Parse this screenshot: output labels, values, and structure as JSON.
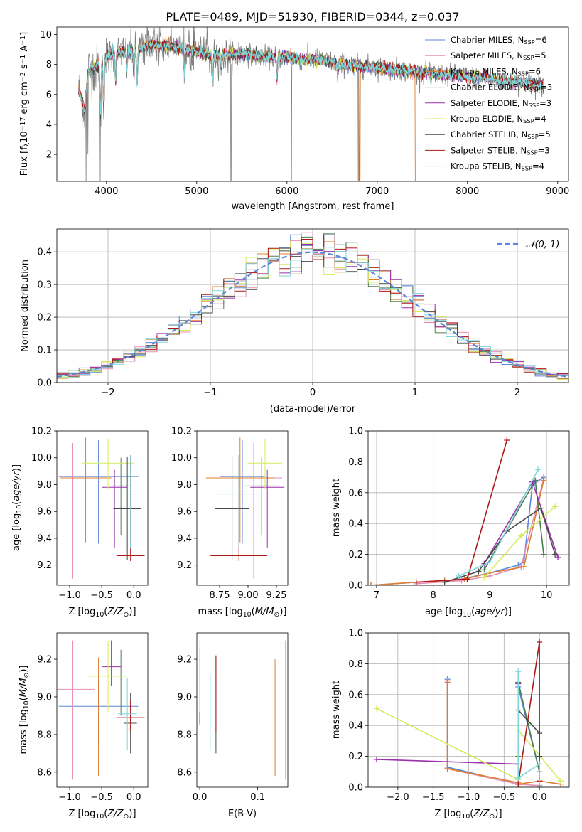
{
  "figure": {
    "title": "PLATE=0489, MJD=51930, FIBERID=0344, z=0.037"
  },
  "series": [
    {
      "name": "Chabrier MILES, N$_{SSP}$=6",
      "label_main": "Chabrier MILES, N",
      "label_sub": "SSP",
      "label_tail": "=6",
      "color": "#5b87d8"
    },
    {
      "name": "Salpeter MILES, N$_{SSP}$=5",
      "label_main": "Salpeter MILES, N",
      "label_sub": "SSP",
      "label_tail": "=5",
      "color": "#e88fb4"
    },
    {
      "name": "Kroupa MILES, N$_{SSP}$=6",
      "label_main": "Kroupa MILES, N",
      "label_sub": "SSP",
      "label_tail": "=6",
      "color": "#dc7d2f"
    },
    {
      "name": "Chabrier ELODIE, N$_{SSP}$=3",
      "label_main": "Chabrier ELODIE, N",
      "label_sub": "SSP",
      "label_tail": "=3",
      "color": "#4d7f4d"
    },
    {
      "name": "Salpeter ELODIE, N$_{SSP}$=3",
      "label_main": "Salpeter ELODIE, N",
      "label_sub": "SSP",
      "label_tail": "=3",
      "color": "#9b2fae"
    },
    {
      "name": "Kroupa ELODIE, N$_{SSP}$=4",
      "label_main": "Kroupa ELODIE, N",
      "label_sub": "SSP",
      "label_tail": "=4",
      "color": "#d4ec5a"
    },
    {
      "name": "Chabrier STELIB, N$_{SSP}$=5",
      "label_main": "Chabrier STELIB, N",
      "label_sub": "SSP",
      "label_tail": "=5",
      "color": "#4a4a4a"
    },
    {
      "name": "Salpeter STELIB, N$_{SSP}$=3",
      "label_main": "Salpeter STELIB, N",
      "label_sub": "SSP",
      "label_tail": "=3",
      "color": "#b01818"
    },
    {
      "name": "Kroupa STELIB, N$_{SSP}$=4",
      "label_main": "Kroupa STELIB, N",
      "label_sub": "SSP",
      "label_tail": "=4",
      "color": "#7fd6da"
    }
  ],
  "data_color": "#808080",
  "chart_data": [
    {
      "id": "spectrum",
      "type": "line",
      "xlabel": "wavelength [Angstrom, rest frame]",
      "ylabel": "Flux [f$_\\lambda$10$^{-17}$ erg cm$^{-2}$ s$^{-1}$ A$^{-1}$]",
      "ylabel_parts": [
        "Flux [f",
        "λ",
        "10",
        "−17",
        " erg cm",
        "−2",
        " s",
        "−1",
        " A",
        "−1",
        "]"
      ],
      "xlim": [
        3450,
        9120
      ],
      "ylim": [
        0.2,
        10.5
      ],
      "xticks": [
        4000,
        5000,
        6000,
        7000,
        8000,
        9000
      ],
      "yticks": [
        2,
        4,
        6,
        8,
        10
      ],
      "legend_position": "upper right",
      "anchors": [
        [
          3700,
          6.2
        ],
        [
          3760,
          4.9
        ],
        [
          3800,
          7.6
        ],
        [
          3900,
          7.9
        ],
        [
          4000,
          8.5
        ],
        [
          4100,
          8.8
        ],
        [
          4200,
          8.9
        ],
        [
          4300,
          8.9
        ],
        [
          4400,
          9.2
        ],
        [
          4500,
          9.3
        ],
        [
          4700,
          9.2
        ],
        [
          4900,
          9.0
        ],
        [
          5100,
          8.7
        ],
        [
          5300,
          8.6
        ],
        [
          5500,
          8.7
        ],
        [
          5800,
          8.5
        ],
        [
          6000,
          8.5
        ],
        [
          6200,
          8.3
        ],
        [
          6400,
          8.3
        ],
        [
          6600,
          8.0
        ],
        [
          6800,
          7.9
        ],
        [
          7000,
          7.8
        ],
        [
          7300,
          7.6
        ],
        [
          7500,
          7.5
        ],
        [
          7800,
          7.3
        ],
        [
          8000,
          7.2
        ],
        [
          8200,
          7.1
        ],
        [
          8400,
          6.9
        ],
        [
          8600,
          6.8
        ],
        [
          8800,
          6.6
        ]
      ],
      "absorption_lines": [
        [
          3934,
          3.6
        ],
        [
          3969,
          3.2
        ],
        [
          4102,
          2.0
        ],
        [
          4227,
          1.2
        ],
        [
          4304,
          1.6
        ],
        [
          4340,
          2.3
        ],
        [
          4861,
          1.6
        ],
        [
          5175,
          1.8
        ],
        [
          5270,
          0.8
        ],
        [
          5890,
          1.5
        ],
        [
          6563,
          0.8
        ],
        [
          7594,
          0.5
        ]
      ],
      "bad_pixels": [
        [
          3775,
          0.0
        ],
        [
          3795,
          2.0
        ],
        [
          3930,
          0.0
        ],
        [
          5380,
          0.0
        ],
        [
          6050,
          0.0
        ],
        [
          6800,
          0.0
        ]
      ],
      "model_dropouts": [
        {
          "series": 2,
          "start": 6790,
          "end": 6810
        },
        {
          "series": 2,
          "start": 7420,
          "end": 9120
        }
      ]
    },
    {
      "id": "residual_distribution",
      "type": "line",
      "xlabel": "(data-model)/error",
      "ylabel": "Normed distribution",
      "xlim": [
        -2.5,
        2.5
      ],
      "ylim": [
        0.0,
        0.47
      ],
      "xticks": [
        -2,
        -1,
        0,
        1,
        2
      ],
      "yticks": [
        0.0,
        0.1,
        0.2,
        0.3,
        0.4
      ],
      "legend": "$\\mathcal{N}(0,1)$",
      "legend_text": "𝒩(0, 1)",
      "bin_edges_range": [
        -2.5,
        2.5
      ],
      "n_bins": 46,
      "gaussian": {
        "mean": 0,
        "sigma": 1,
        "color": "#5b87d8"
      }
    },
    {
      "id": "age_vs_Z",
      "type": "scatter",
      "error_bars": true,
      "xlabel": "Z [log$_{10}$($Z/Z_\\odot$)]",
      "ylabel": "age  [log$_{10}$($age/yr$)]",
      "xlim": [
        -1.2,
        0.22
      ],
      "ylim": [
        9.05,
        10.2
      ],
      "xticks": [
        -1.0,
        -0.5,
        0.0
      ],
      "yticks": [
        9.2,
        9.4,
        9.6,
        9.8,
        10.0,
        10.2
      ],
      "points": [
        {
          "series": 0,
          "x": -0.55,
          "y": 9.86,
          "xerr": 0.62,
          "yerr": [
            0.5,
            0.27
          ]
        },
        {
          "series": 1,
          "x": -0.95,
          "y": 9.85,
          "xerr": 0.2,
          "yerr": [
            0.75,
            0.26
          ]
        },
        {
          "series": 2,
          "x": -0.75,
          "y": 9.85,
          "xerr": 0.4,
          "yerr": [
            0.48,
            0.3
          ]
        },
        {
          "series": 3,
          "x": -0.2,
          "y": 9.79,
          "xerr": 0.15,
          "yerr": [
            0.37,
            0.21
          ]
        },
        {
          "series": 4,
          "x": -0.3,
          "y": 9.78,
          "xerr": 0.2,
          "yerr": [
            0.45,
            0.13
          ]
        },
        {
          "series": 5,
          "x": -0.4,
          "y": 9.96,
          "xerr": 0.4,
          "yerr": [
            0.19,
            0.18
          ]
        },
        {
          "series": 6,
          "x": -0.1,
          "y": 9.62,
          "xerr": 0.22,
          "yerr": [
            0.38,
            0.39
          ]
        },
        {
          "series": 7,
          "x": -0.05,
          "y": 9.27,
          "xerr": 0.22,
          "yerr": [
            0.04,
            0.75
          ]
        },
        {
          "series": 8,
          "x": -0.05,
          "y": 9.73,
          "xerr": 0.12,
          "yerr": [
            0.4,
            0.29
          ]
        }
      ]
    },
    {
      "id": "age_vs_mass",
      "type": "scatter",
      "error_bars": true,
      "xlabel": "mass [log$_{10}$($M/M_\\odot$)]",
      "xlim": [
        8.55,
        9.35
      ],
      "ylim": [
        9.05,
        10.2
      ],
      "xticks": [
        8.75,
        9.0,
        9.25
      ],
      "yticks": [
        9.2,
        9.4,
        9.6,
        9.8,
        10.0,
        10.2
      ],
      "points": [
        {
          "series": 0,
          "x": 8.95,
          "y": 9.86,
          "xerr": 0.2,
          "yerr": [
            0.5,
            0.27
          ]
        },
        {
          "series": 1,
          "x": 9.05,
          "y": 9.85,
          "xerr": 0.25,
          "yerr": [
            0.75,
            0.26
          ]
        },
        {
          "series": 2,
          "x": 8.93,
          "y": 9.85,
          "xerr": 0.3,
          "yerr": [
            0.48,
            0.3
          ]
        },
        {
          "series": 3,
          "x": 9.12,
          "y": 9.79,
          "xerr": 0.15,
          "yerr": [
            0.37,
            0.21
          ]
        },
        {
          "series": 4,
          "x": 9.17,
          "y": 9.78,
          "xerr": 0.15,
          "yerr": [
            0.45,
            0.13
          ]
        },
        {
          "series": 5,
          "x": 9.15,
          "y": 9.96,
          "xerr": 0.15,
          "yerr": [
            0.19,
            0.18
          ]
        },
        {
          "series": 6,
          "x": 8.86,
          "y": 9.62,
          "xerr": 0.15,
          "yerr": [
            0.38,
            0.39
          ]
        },
        {
          "series": 7,
          "x": 8.92,
          "y": 9.27,
          "xerr": 0.25,
          "yerr": [
            0.04,
            0.75
          ]
        },
        {
          "series": 8,
          "x": 8.92,
          "y": 9.73,
          "xerr": 0.2,
          "yerr": [
            0.4,
            0.29
          ]
        }
      ]
    },
    {
      "id": "mass_weight_vs_age",
      "type": "line",
      "markers": "+",
      "xlabel": "age  [log$_{10}$($age/yr$)]",
      "ylabel": "mass weight",
      "xlim": [
        6.85,
        10.4
      ],
      "ylim": [
        0.0,
        1.0
      ],
      "xticks": [
        7,
        8,
        9,
        10
      ],
      "yticks": [
        0.0,
        0.2,
        0.4,
        0.6,
        0.8,
        1.0
      ],
      "lines": [
        {
          "series": 0,
          "x": [
            6.9,
            7.7,
            8.2,
            8.5,
            9.0,
            9.5,
            9.6,
            9.75,
            9.95
          ],
          "y": [
            0.0,
            0.02,
            0.03,
            0.04,
            0.08,
            0.13,
            0.15,
            0.65,
            0.7
          ]
        },
        {
          "series": 1,
          "x": [
            7.7,
            8.5,
            9.0,
            9.55,
            9.95
          ],
          "y": [
            0.01,
            0.03,
            0.06,
            0.12,
            0.69
          ]
        },
        {
          "series": 2,
          "x": [
            6.9,
            7.7,
            8.2,
            8.55,
            9.0,
            9.6,
            9.95
          ],
          "y": [
            0.0,
            0.02,
            0.03,
            0.04,
            0.08,
            0.12,
            0.68
          ]
        },
        {
          "series": 3,
          "x": [
            8.9,
            9.8,
            9.95
          ],
          "y": [
            0.1,
            0.68,
            0.2
          ]
        },
        {
          "series": 4,
          "x": [
            8.9,
            9.75,
            10.2
          ],
          "y": [
            0.14,
            0.67,
            0.18
          ]
        },
        {
          "series": 5,
          "x": [
            8.9,
            9.55,
            10.15
          ],
          "y": [
            0.05,
            0.32,
            0.51
          ]
        },
        {
          "series": 6,
          "x": [
            8.2,
            8.8,
            9.3,
            9.9,
            10.15
          ],
          "y": [
            0.02,
            0.09,
            0.35,
            0.5,
            0.2
          ]
        },
        {
          "series": 7,
          "x": [
            7.7,
            8.6,
            9.3
          ],
          "y": [
            0.02,
            0.04,
            0.94
          ]
        },
        {
          "series": 8,
          "x": [
            8.45,
            9.0,
            9.85
          ],
          "y": [
            0.06,
            0.15,
            0.75
          ]
        }
      ]
    },
    {
      "id": "mass_vs_Z",
      "type": "scatter",
      "error_bars": true,
      "xlabel": "Z [log$_{10}$($Z/Z_\\odot$)]",
      "ylabel": "mass [log$_{10}$($M/M_\\odot$)]",
      "xlim": [
        -1.2,
        0.22
      ],
      "ylim": [
        8.52,
        9.34
      ],
      "xticks": [
        -1.0,
        -0.5,
        0.0
      ],
      "yticks": [
        8.6,
        8.8,
        9.0,
        9.2
      ],
      "points": [
        {
          "series": 0,
          "x": -0.55,
          "y": 8.95,
          "xerr": 0.62,
          "yerr": [
            0.2,
            0.18
          ]
        },
        {
          "series": 1,
          "x": -0.95,
          "y": 9.04,
          "xerr": 0.35,
          "yerr": [
            0.48,
            0.26
          ]
        },
        {
          "series": 2,
          "x": -0.55,
          "y": 8.93,
          "xerr": 0.62,
          "yerr": [
            0.35,
            0.28
          ]
        },
        {
          "series": 3,
          "x": -0.2,
          "y": 9.1,
          "xerr": 0.1,
          "yerr": [
            0.2,
            0.15
          ]
        },
        {
          "series": 4,
          "x": -0.35,
          "y": 9.16,
          "xerr": 0.15,
          "yerr": [
            0.1,
            0.14
          ]
        },
        {
          "series": 5,
          "x": -0.4,
          "y": 9.11,
          "xerr": 0.3,
          "yerr": [
            0.19,
            0.19
          ]
        },
        {
          "series": 6,
          "x": -0.05,
          "y": 8.86,
          "xerr": 0.1,
          "yerr": [
            0.16,
            0.16
          ]
        },
        {
          "series": 7,
          "x": -0.05,
          "y": 8.89,
          "xerr": 0.22,
          "yerr": [
            0.07,
            0.09
          ]
        },
        {
          "series": 8,
          "x": -0.1,
          "y": 8.91,
          "xerr": 0.15,
          "yerr": [
            0.19,
            0.19
          ]
        }
      ]
    },
    {
      "id": "mass_vs_EBV",
      "type": "scatter",
      "error_bars": true,
      "xlabel": "E(B-V)",
      "xlim": [
        -0.005,
        0.152
      ],
      "ylim": [
        8.52,
        9.34
      ],
      "xticks": [
        0.0,
        0.1
      ],
      "yticks": [
        8.6,
        8.8,
        9.0,
        9.2
      ],
      "points": [
        {
          "series": 0,
          "x": 0.0,
          "y": 8.95,
          "xerr": 0.0,
          "yerr": [
            0.1,
            0.1
          ]
        },
        {
          "series": 1,
          "x": 0.148,
          "y": 9.04,
          "xerr": 0.0,
          "yerr": [
            0.48,
            0.26
          ]
        },
        {
          "series": 2,
          "x": 0.13,
          "y": 8.93,
          "xerr": 0.0,
          "yerr": [
            0.35,
            0.27
          ]
        },
        {
          "series": 3,
          "x": 0.0,
          "y": 9.1,
          "xerr": 0.0,
          "yerr": [
            0.24,
            0.1
          ]
        },
        {
          "series": 4,
          "x": 0.0,
          "y": 9.16,
          "xerr": 0.0,
          "yerr": [
            0.1,
            0.1
          ]
        },
        {
          "series": 5,
          "x": 0.0,
          "y": 9.11,
          "xerr": 0.0,
          "yerr": [
            0.19,
            0.19
          ]
        },
        {
          "series": 6,
          "x": 0.028,
          "y": 8.96,
          "xerr": 0.0,
          "yerr": [
            0.26,
            0.26
          ]
        },
        {
          "series": 7,
          "x": 0.028,
          "y": 8.96,
          "xerr": 0.0,
          "yerr": [
            0.15,
            0.26
          ]
        },
        {
          "series": 8,
          "x": 0.018,
          "y": 8.92,
          "xerr": 0.0,
          "yerr": [
            0.2,
            0.2
          ]
        }
      ]
    },
    {
      "id": "mass_weight_vs_Z",
      "type": "line",
      "markers": "+",
      "xlabel": "Z [log$_{10}$($Z/Z_\\odot$)]",
      "ylabel": "mass weight",
      "xlim": [
        -2.42,
        0.42
      ],
      "ylim": [
        0.0,
        1.0
      ],
      "xticks": [
        -2.0,
        -1.5,
        -1.0,
        -0.5,
        0.0
      ],
      "yticks": [
        0.0,
        0.2,
        0.4,
        0.6,
        0.8,
        1.0
      ],
      "lines": [
        {
          "series": 0,
          "x": [
            -1.3,
            -1.3,
            -0.3,
            -0.3,
            0.0,
            0.0
          ],
          "y": [
            0.7,
            0.13,
            0.02,
            0.65,
            0.1,
            0.01
          ]
        },
        {
          "series": 1,
          "x": [
            -1.3,
            -1.3,
            -0.3,
            0.0
          ],
          "y": [
            0.69,
            0.12,
            0.02,
            0.01
          ]
        },
        {
          "series": 2,
          "x": [
            -1.3,
            -1.3,
            -0.3,
            -0.3,
            0.0,
            0.3
          ],
          "y": [
            0.68,
            0.12,
            0.03,
            0.02,
            0.04,
            0.02
          ]
        },
        {
          "series": 3,
          "x": [
            -0.3,
            -0.3,
            0.0,
            0.0
          ],
          "y": [
            0.2,
            0.68,
            0.1,
            0.0
          ]
        },
        {
          "series": 4,
          "x": [
            -2.3,
            -0.3,
            -0.3
          ],
          "y": [
            0.18,
            0.15,
            0.67
          ]
        },
        {
          "series": 5,
          "x": [
            -2.3,
            -0.3,
            -0.3,
            0.3
          ],
          "y": [
            0.51,
            0.05,
            0.37,
            0.04
          ]
        },
        {
          "series": 6,
          "x": [
            -0.3,
            0.0,
            0.0
          ],
          "y": [
            0.5,
            0.35,
            0.2
          ]
        },
        {
          "series": 7,
          "x": [
            -0.3,
            0.0,
            0.0
          ],
          "y": [
            0.02,
            0.94,
            0.04
          ]
        },
        {
          "series": 8,
          "x": [
            -0.3,
            -0.3,
            0.0,
            0.0
          ],
          "y": [
            0.75,
            0.06,
            0.15,
            0.02
          ]
        }
      ]
    }
  ]
}
